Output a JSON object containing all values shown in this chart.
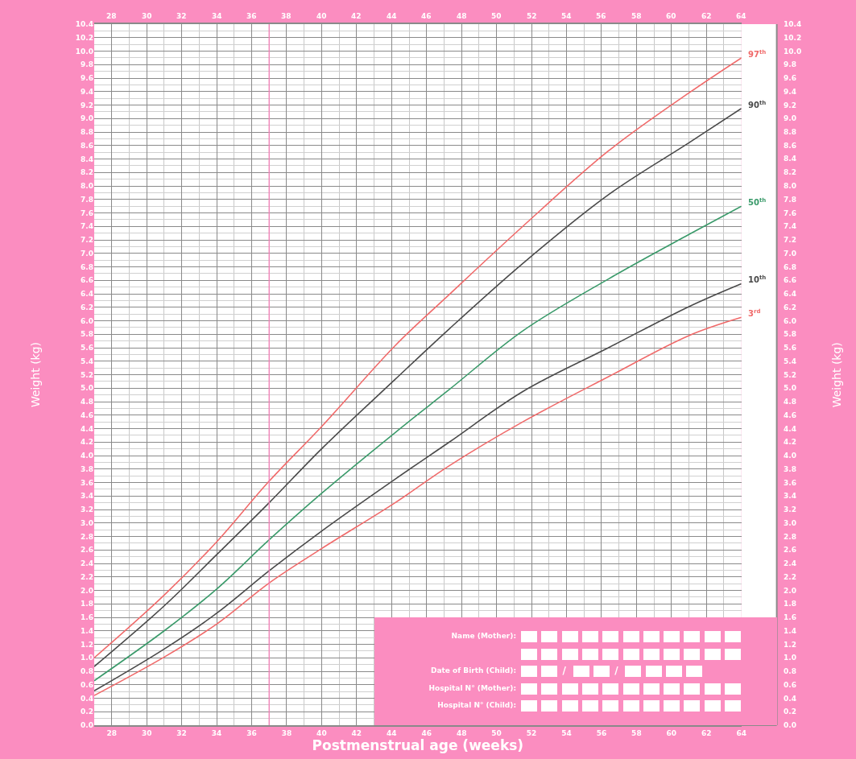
{
  "chart_data": {
    "type": "line",
    "xlabel": "Postmenstrual age (weeks)",
    "ylabel": "Weight (kg)",
    "y2label": "Weight (kg)",
    "x": [
      27,
      31,
      34,
      37,
      40,
      44.2,
      47.3,
      51.5,
      56.4,
      61,
      64
    ],
    "series": [
      {
        "name": "97$^{th}$",
        "color": "#f06a6a",
        "values": [
          1.0,
          1.93,
          2.72,
          3.62,
          4.43,
          5.63,
          6.39,
          7.4,
          8.52,
          9.38,
          9.9
        ]
      },
      {
        "name": "90$^{th}$",
        "color": "#4a4a4a",
        "values": [
          0.87,
          1.77,
          2.53,
          3.3,
          4.1,
          5.13,
          5.88,
          6.85,
          7.87,
          8.64,
          9.15
        ]
      },
      {
        "name": "50$^{th}$",
        "color": "#3a9a6a",
        "values": [
          0.66,
          1.4,
          2.02,
          2.75,
          3.44,
          4.34,
          4.98,
          5.85,
          6.62,
          7.28,
          7.7
        ]
      },
      {
        "name": "10$^{th}$",
        "color": "#4a4a4a",
        "values": [
          0.51,
          1.13,
          1.66,
          2.29,
          2.88,
          3.65,
          4.2,
          4.95,
          5.6,
          6.21,
          6.55
        ]
      },
      {
        "name": "3$^{rd}$",
        "color": "#f06a6a",
        "values": [
          0.44,
          1.01,
          1.5,
          2.11,
          2.62,
          3.3,
          3.85,
          4.5,
          5.17,
          5.78,
          6.05
        ]
      }
    ],
    "xlim": [
      27,
      64
    ],
    "xticks": [
      28,
      30,
      32,
      34,
      36,
      38,
      40,
      42,
      44,
      46,
      48,
      50,
      52,
      54,
      56,
      58,
      60,
      62,
      64
    ],
    "x2lim": [
      27,
      64
    ],
    "x2ticks": [
      28,
      30,
      32,
      34,
      36,
      38,
      40,
      42,
      44,
      46,
      48,
      50,
      52,
      54,
      56,
      58,
      60,
      62,
      64
    ],
    "ylim": [
      0,
      10.4
    ],
    "yticks": [
      {
        "value": 0,
        "label": "0.0"
      },
      0.2,
      0.4,
      0.6,
      0.8,
      {
        "value": 1,
        "label": "1.0"
      },
      1.2,
      1.4,
      1.6,
      1.8,
      {
        "value": 2,
        "label": "2.0"
      },
      2.2,
      2.4,
      2.6,
      2.8,
      {
        "value": 3,
        "label": "3.0"
      },
      3.2,
      3.4,
      3.6,
      3.8,
      {
        "value": 4,
        "label": "4.0"
      },
      4.2,
      4.4,
      4.6,
      4.8,
      {
        "value": 5,
        "label": "5.0"
      },
      5.2,
      5.4,
      5.6,
      5.8,
      {
        "value": 6,
        "label": "6.0"
      },
      6.2,
      6.4,
      6.6,
      6.8,
      {
        "value": 7,
        "label": "7.0"
      },
      7.2,
      7.4,
      7.6,
      7.8,
      {
        "value": 8,
        "label": "8.0"
      },
      8.2,
      8.4,
      8.6,
      8.8,
      {
        "value": 9,
        "label": "9.0"
      },
      9.2,
      9.4,
      9.6,
      9.8,
      {
        "value": 10,
        "label": "10.0"
      },
      10.2,
      10.4
    ],
    "y2lim": [
      0,
      10.4
    ],
    "y2ticks": [
      {
        "value": 0,
        "label": "0.0"
      },
      0.2,
      0.4,
      0.6,
      0.8,
      {
        "value": 1,
        "label": "1.0"
      },
      1.2,
      1.4,
      1.6,
      1.8,
      {
        "value": 2,
        "label": "2.0"
      },
      2.2,
      2.4,
      2.6,
      2.8,
      {
        "value": 3,
        "label": "3.0"
      },
      3.2,
      3.4,
      3.6,
      3.8,
      {
        "value": 4,
        "label": "4.0"
      },
      4.2,
      4.4,
      4.6,
      4.8,
      {
        "value": 5,
        "label": "5.0"
      },
      5.2,
      5.4,
      5.6,
      5.8,
      {
        "value": 6,
        "label": "6.0"
      },
      6.2,
      6.4,
      6.6,
      6.8,
      {
        "value": 7,
        "label": "7.0"
      },
      7.2,
      7.4,
      7.6,
      7.8,
      {
        "value": 8,
        "label": "8.0"
      },
      8.2,
      8.4,
      8.6,
      8.8,
      {
        "value": 9,
        "label": "9.0"
      },
      9.2,
      9.4,
      9.6,
      9.8,
      {
        "value": 10,
        "label": "10.0"
      },
      10.2,
      10.4
    ],
    "ref_lines": [
      {
        "axis": "x",
        "value": 37,
        "color": "#f57fb8"
      }
    ],
    "annotations": [
      "Name (Mother):",
      "Date of Birth (Child):",
      "Hospital N° (Mother):",
      "Hospital N° (Child):",
      "/",
      "/"
    ],
    "grid": true,
    "legend": false
  }
}
